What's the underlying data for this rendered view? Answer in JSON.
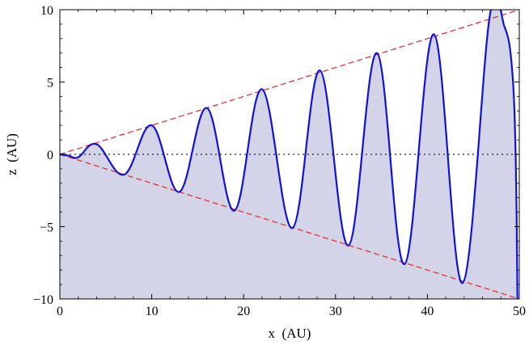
{
  "chart_data": {
    "type": "line",
    "title": "",
    "xlabel": "x  (AU)",
    "ylabel": "z  (AU)",
    "xlim": [
      0,
      50
    ],
    "ylim": [
      -10,
      10
    ],
    "xticks": [
      0,
      10,
      20,
      30,
      40,
      50
    ],
    "yticks": [
      -10,
      -5,
      0,
      5,
      10
    ],
    "xtick_labels": [
      "0",
      "10",
      "20",
      "30",
      "40",
      "50"
    ],
    "ytick_labels": [
      "−10",
      "−5",
      "0",
      "5",
      "10"
    ],
    "grid": false,
    "legend": "none",
    "colors": {
      "curve": "#1111dd",
      "envelope": "#ee2222",
      "fill": "#d4d4e8",
      "zero_line": "#222222",
      "frame": "#000000"
    },
    "series": [
      {
        "kind": "curve",
        "x": [
          0,
          1,
          2,
          4,
          7,
          10,
          13,
          16,
          19,
          22,
          25.3,
          28.3,
          31.4,
          34.5,
          37.5,
          40.7,
          43.8,
          46.8,
          48.4,
          49.2,
          49.6,
          49.8
        ],
        "y": [
          0,
          -0.1,
          -0.2,
          0.7,
          -1.4,
          2.0,
          -2.6,
          3.2,
          -3.9,
          4.5,
          -5.1,
          5.8,
          -6.3,
          7.0,
          -7.6,
          8.3,
          -8.9,
          9.6,
          8.8,
          6.0,
          0.0,
          -10.0
        ]
      },
      {
        "kind": "envelope-upper",
        "x": [
          0,
          50
        ],
        "y": [
          0,
          10
        ]
      },
      {
        "kind": "envelope-lower",
        "x": [
          0,
          50
        ],
        "y": [
          0,
          -10
        ]
      },
      {
        "kind": "zero-line",
        "x": [
          0,
          50
        ],
        "y": [
          0,
          0
        ]
      }
    ]
  }
}
